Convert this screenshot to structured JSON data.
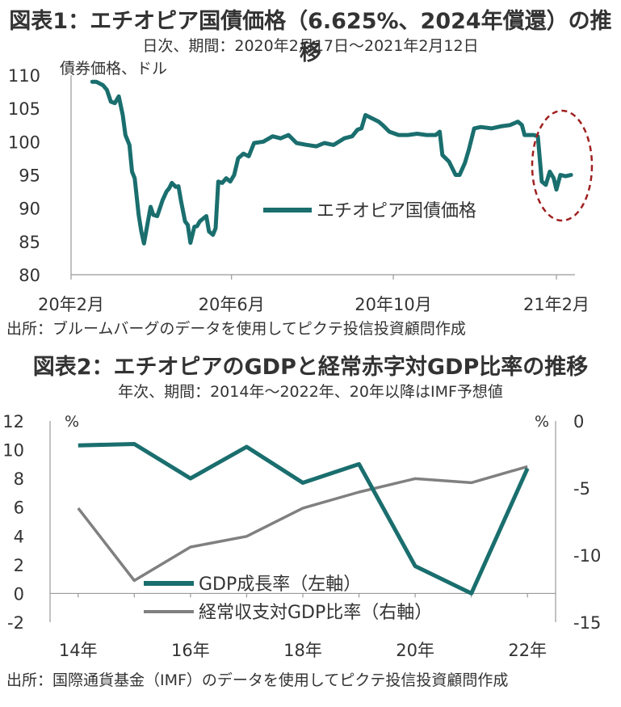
{
  "chart1": {
    "title": "図表1：エチオピア国債価格（6.625%、2024年償還）の推移",
    "subtitle": "日次、期間：2020年2月17日～2021年2月12日",
    "source": "出所：ブルームバーグのデータを使用してピクテ投信投資顧問作成",
    "colors": {
      "line": "#1a6e6e",
      "highlight": "#a02020"
    }
  },
  "chart2": {
    "title": "図表2：エチオピアのGDPと経常赤字対GDP比率の推移",
    "subtitle": "年次、期間：2014年～2022年、20年以降はIMF予想値",
    "source": "出所：国際通貨基金（IMF）のデータを使用してピクテ投信投資顧問作成",
    "colors": {
      "gdp": "#1a6e6e",
      "current": "#808080"
    }
  },
  "chart_data": [
    {
      "type": "line",
      "ylabel": "債券価格、ドル",
      "ylim": [
        80,
        110
      ],
      "yticks": [
        "80",
        "85",
        "90",
        "95",
        "100",
        "105",
        "110"
      ],
      "xlim": [
        "2020-02-01",
        "2021-02-15"
      ],
      "xticks": [
        {
          "date": "2020-02-01",
          "label": "20年2月"
        },
        {
          "date": "2020-06-01",
          "label": "20年6月"
        },
        {
          "date": "2020-10-01",
          "label": "20年10月"
        },
        {
          "date": "2021-02-01",
          "label": "21年2月"
        }
      ],
      "legend_position": "center-right",
      "annotation": "dashed circle around late Jan–Feb 2021 decline",
      "series": [
        {
          "name": "エチオピア国債価格",
          "points": [
            [
              "2020-02-17",
              109.0
            ],
            [
              "2020-02-20",
              109.0
            ],
            [
              "2020-02-25",
              108.5
            ],
            [
              "2020-02-28",
              107.8
            ],
            [
              "2020-03-02",
              106.0
            ],
            [
              "2020-03-05",
              105.8
            ],
            [
              "2020-03-08",
              106.8
            ],
            [
              "2020-03-11",
              104.0
            ],
            [
              "2020-03-13",
              101.0
            ],
            [
              "2020-03-16",
              99.5
            ],
            [
              "2020-03-18",
              95.5
            ],
            [
              "2020-03-20",
              94.5
            ],
            [
              "2020-03-23",
              89.0
            ],
            [
              "2020-03-25",
              86.5
            ],
            [
              "2020-03-27",
              84.7
            ],
            [
              "2020-03-30",
              88.0
            ],
            [
              "2020-04-01",
              90.2
            ],
            [
              "2020-04-03",
              89.0
            ],
            [
              "2020-04-06",
              88.8
            ],
            [
              "2020-04-08",
              90.0
            ],
            [
              "2020-04-10",
              91.2
            ],
            [
              "2020-04-13",
              92.5
            ],
            [
              "2020-04-15",
              93.0
            ],
            [
              "2020-04-17",
              93.8
            ],
            [
              "2020-04-20",
              93.2
            ],
            [
              "2020-04-22",
              93.3
            ],
            [
              "2020-04-24",
              91.0
            ],
            [
              "2020-04-27",
              88.0
            ],
            [
              "2020-04-29",
              87.5
            ],
            [
              "2020-05-01",
              84.8
            ],
            [
              "2020-05-04",
              87.2
            ],
            [
              "2020-05-06",
              87.3
            ],
            [
              "2020-05-08",
              88.0
            ],
            [
              "2020-05-11",
              88.5
            ],
            [
              "2020-05-13",
              88.8
            ],
            [
              "2020-05-15",
              86.5
            ],
            [
              "2020-05-18",
              86.0
            ],
            [
              "2020-05-20",
              87.0
            ],
            [
              "2020-05-22",
              94.0
            ],
            [
              "2020-05-25",
              93.8
            ],
            [
              "2020-05-28",
              94.5
            ],
            [
              "2020-05-31",
              94.0
            ],
            [
              "2020-06-03",
              95.0
            ],
            [
              "2020-06-06",
              97.5
            ],
            [
              "2020-06-10",
              98.2
            ],
            [
              "2020-06-14",
              97.8
            ],
            [
              "2020-06-18",
              99.8
            ],
            [
              "2020-06-25",
              100.0
            ],
            [
              "2020-07-02",
              100.8
            ],
            [
              "2020-07-08",
              100.5
            ],
            [
              "2020-07-14",
              101.0
            ],
            [
              "2020-07-20",
              99.8
            ],
            [
              "2020-07-28",
              99.5
            ],
            [
              "2020-08-04",
              99.3
            ],
            [
              "2020-08-10",
              99.8
            ],
            [
              "2020-08-17",
              99.5
            ],
            [
              "2020-08-25",
              100.5
            ],
            [
              "2020-08-31",
              100.8
            ],
            [
              "2020-09-04",
              101.8
            ],
            [
              "2020-09-07",
              102.0
            ],
            [
              "2020-09-10",
              104.0
            ],
            [
              "2020-09-15",
              103.5
            ],
            [
              "2020-09-20",
              103.0
            ],
            [
              "2020-09-23",
              102.5
            ],
            [
              "2020-09-28",
              101.5
            ],
            [
              "2020-10-05",
              101.0
            ],
            [
              "2020-10-12",
              101.0
            ],
            [
              "2020-10-19",
              101.2
            ],
            [
              "2020-10-26",
              101.0
            ],
            [
              "2020-11-02",
              101.0
            ],
            [
              "2020-11-05",
              101.5
            ],
            [
              "2020-11-07",
              98.0
            ],
            [
              "2020-11-12",
              97.0
            ],
            [
              "2020-11-17",
              95.0
            ],
            [
              "2020-11-20",
              95.0
            ],
            [
              "2020-11-24",
              96.8
            ],
            [
              "2020-11-27",
              98.8
            ],
            [
              "2020-12-01",
              102.0
            ],
            [
              "2020-12-06",
              102.2
            ],
            [
              "2020-12-14",
              102.0
            ],
            [
              "2020-12-21",
              102.3
            ],
            [
              "2020-12-28",
              102.5
            ],
            [
              "2021-01-03",
              103.0
            ],
            [
              "2021-01-06",
              102.5
            ],
            [
              "2021-01-08",
              101.0
            ],
            [
              "2021-01-15",
              101.0
            ],
            [
              "2021-01-18",
              100.8
            ],
            [
              "2021-01-21",
              94.0
            ],
            [
              "2021-01-24",
              93.5
            ],
            [
              "2021-01-27",
              95.5
            ],
            [
              "2021-01-30",
              94.5
            ],
            [
              "2021-02-01",
              92.8
            ],
            [
              "2021-02-04",
              95.0
            ],
            [
              "2021-02-08",
              94.8
            ],
            [
              "2021-02-12",
              95.0
            ]
          ]
        }
      ]
    },
    {
      "type": "line",
      "categories": [
        "14年",
        "15年",
        "16年",
        "17年",
        "18年",
        "19年",
        "20年",
        "21年",
        "22年"
      ],
      "xtick_labels": [
        "14年",
        "16年",
        "18年",
        "20年",
        "22年"
      ],
      "ylabel_left": "%",
      "ylabel_right": "%",
      "ylim_left": [
        -2,
        12
      ],
      "yticks_left": [
        "-2",
        "0",
        "2",
        "4",
        "6",
        "8",
        "10",
        "12"
      ],
      "ylim_right": [
        -15,
        0
      ],
      "yticks_right": [
        "-15",
        "-10",
        "-5",
        "0"
      ],
      "legend_position": "bottom-center",
      "series": [
        {
          "name": "GDP成長率（左軸）",
          "axis": "left",
          "values": [
            10.3,
            10.4,
            8.0,
            10.2,
            7.7,
            9.0,
            1.9,
            0.0,
            8.7
          ]
        },
        {
          "name": "経常収支対GDP比率（右軸）",
          "axis": "right",
          "values": [
            -6.5,
            -11.9,
            -9.4,
            -8.6,
            -6.5,
            -5.3,
            -4.3,
            -4.6,
            -3.4
          ]
        }
      ]
    }
  ]
}
